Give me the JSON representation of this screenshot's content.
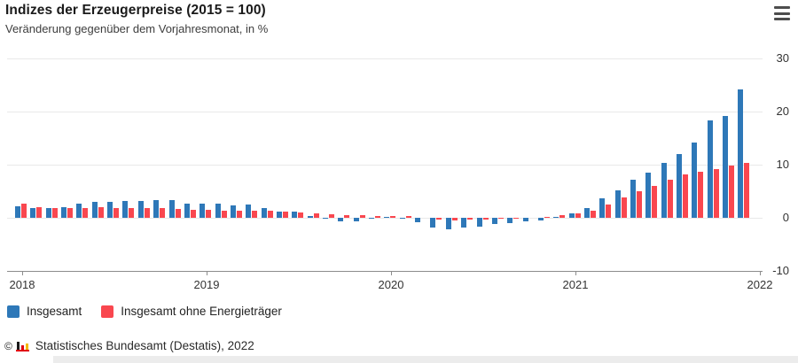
{
  "header": {
    "title": "Indizes der Erzeugerpreise (2015 = 100)",
    "subtitle": "Veränderung gegenüber dem Vorjahresmonat, in %"
  },
  "menu": {
    "icon": "hamburger-menu-icon"
  },
  "chart_data": {
    "type": "bar",
    "title": "Indizes der Erzeugerpreise (2015 = 100)",
    "subtitle": "Veränderung gegenüber dem Vorjahresmonat, in %",
    "unit": "%",
    "ylim": [
      -10,
      30
    ],
    "y_ticks": [
      30,
      20,
      10,
      0,
      -10
    ],
    "grid_values": [
      30,
      20,
      10,
      0
    ],
    "x_tick_labels": [
      "2018",
      "2019",
      "2020",
      "2021",
      "2022"
    ],
    "legend_position": "bottom",
    "months": [
      "Jan 2018",
      "Feb 2018",
      "Mär 2018",
      "Apr 2018",
      "Mai 2018",
      "Jun 2018",
      "Jul 2018",
      "Aug 2018",
      "Sep 2018",
      "Okt 2018",
      "Nov 2018",
      "Dez 2018",
      "Jan 2019",
      "Feb 2019",
      "Mär 2019",
      "Apr 2019",
      "Mai 2019",
      "Jun 2019",
      "Jul 2019",
      "Aug 2019",
      "Sep 2019",
      "Okt 2019",
      "Nov 2019",
      "Dez 2019",
      "Jan 2020",
      "Feb 2020",
      "Mär 2020",
      "Apr 2020",
      "Mai 2020",
      "Jun 2020",
      "Jul 2020",
      "Aug 2020",
      "Sep 2020",
      "Okt 2020",
      "Nov 2020",
      "Dez 2020",
      "Jan 2021",
      "Feb 2021",
      "Mär 2021",
      "Apr 2021",
      "Mai 2021",
      "Jun 2021",
      "Jul 2021",
      "Aug 2021",
      "Sep 2021",
      "Okt 2021",
      "Nov 2021",
      "Dez 2021"
    ],
    "series": [
      {
        "name": "Insgesamt",
        "color": "#2e78b8",
        "values": [
          2.1,
          1.8,
          1.9,
          2.0,
          2.7,
          3.0,
          3.0,
          3.1,
          3.2,
          3.3,
          3.3,
          2.7,
          2.6,
          2.6,
          2.4,
          2.5,
          1.9,
          1.2,
          1.1,
          0.3,
          -0.1,
          -0.6,
          -0.7,
          -0.2,
          0.2,
          -0.1,
          -0.8,
          -1.9,
          -2.2,
          -1.8,
          -1.7,
          -1.2,
          -1.0,
          -0.7,
          -0.5,
          0.2,
          0.9,
          1.9,
          3.7,
          5.2,
          7.2,
          8.5,
          10.4,
          12.0,
          14.2,
          18.4,
          19.2,
          24.2
        ]
      },
      {
        "name": "Insgesamt ohne Energieträger",
        "color": "#f9474f",
        "values": [
          2.6,
          2.0,
          1.9,
          1.8,
          1.9,
          2.0,
          1.9,
          1.8,
          1.8,
          1.8,
          1.7,
          1.5,
          1.5,
          1.4,
          1.3,
          1.4,
          1.3,
          1.1,
          1.0,
          0.8,
          0.6,
          0.5,
          0.5,
          0.4,
          0.4,
          0.3,
          0.0,
          -0.4,
          -0.5,
          -0.4,
          -0.3,
          -0.2,
          -0.1,
          0.0,
          0.2,
          0.5,
          0.8,
          1.4,
          2.5,
          3.8,
          5.0,
          6.0,
          7.2,
          8.2,
          8.6,
          9.2,
          9.9,
          10.4
        ]
      }
    ]
  },
  "footer": {
    "copyright": "©",
    "source": "Statistisches Bundesamt (Destatis), 2022"
  }
}
